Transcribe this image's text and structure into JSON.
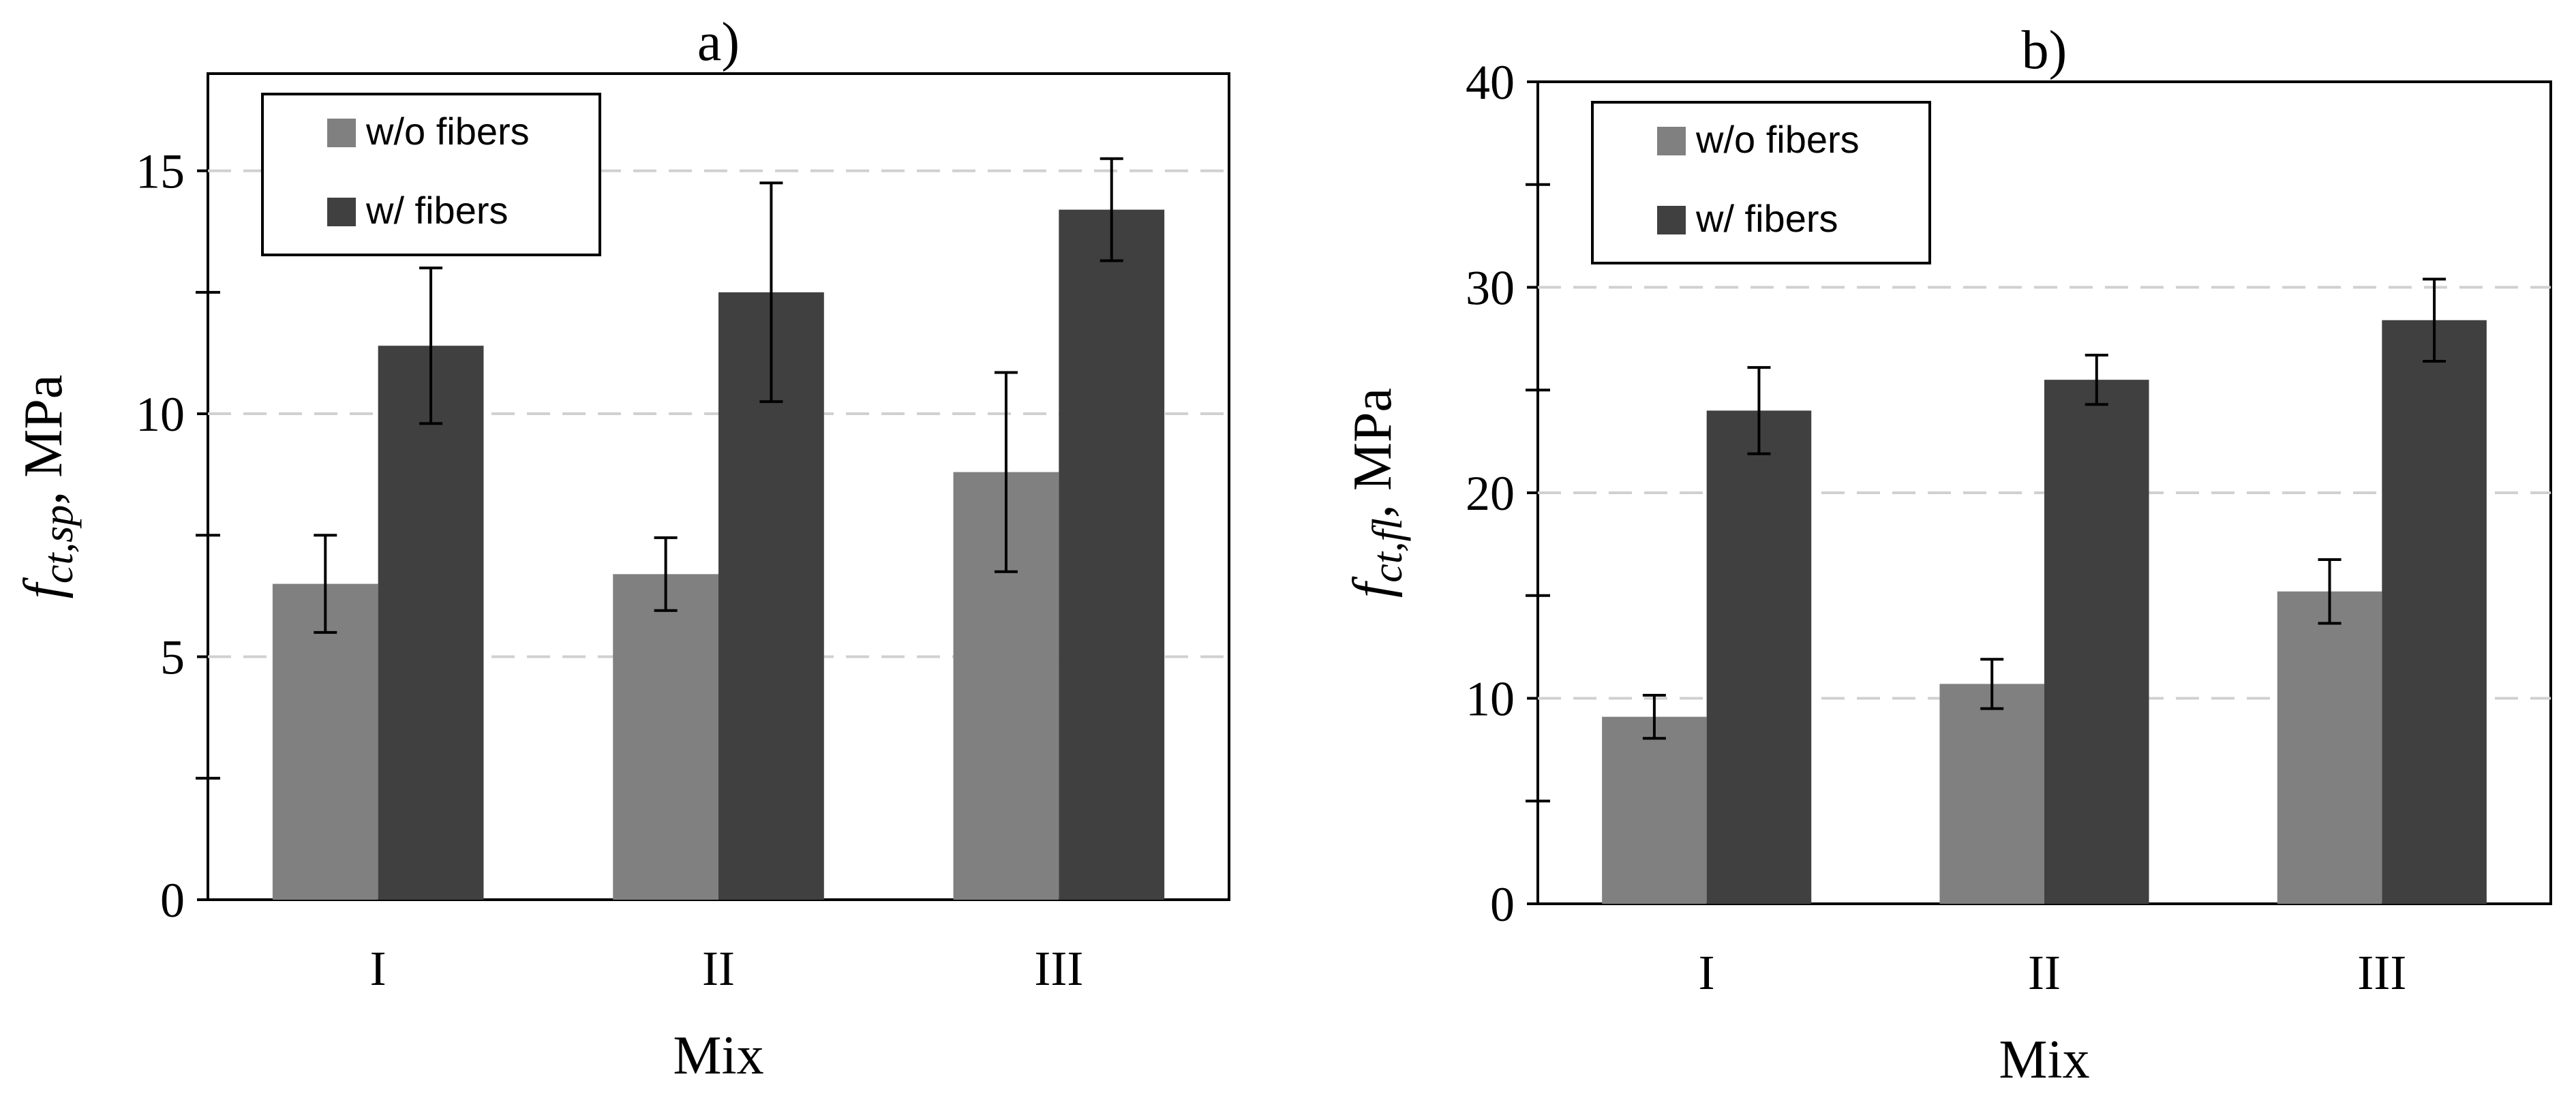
{
  "chart_data": [
    {
      "type": "bar",
      "title": "a)",
      "xlabel": "Mix",
      "ylabel": {
        "symbol": "f",
        "subscript": "ct,sp",
        "unit": ", MPa"
      },
      "categories": [
        "I",
        "II",
        "III"
      ],
      "ylim": [
        0,
        17
      ],
      "yticks": [
        0,
        5,
        10,
        15
      ],
      "grid": "horizontal dashed",
      "legend_position": "top-left",
      "series": [
        {
          "name": "w/o fibers",
          "color": "#808080",
          "values": [
            6.5,
            6.7,
            8.8
          ],
          "errors": [
            1.0,
            0.75,
            2.05
          ]
        },
        {
          "name": "w/ fibers",
          "color": "#404040",
          "values": [
            11.4,
            12.5,
            14.2
          ],
          "errors": [
            1.6,
            2.25,
            1.05
          ]
        }
      ]
    },
    {
      "type": "bar",
      "title": "b)",
      "xlabel": "Mix",
      "ylabel": {
        "symbol": "f",
        "subscript": "ct,fl",
        "unit": ", MPa"
      },
      "categories": [
        "I",
        "II",
        "III"
      ],
      "ylim": [
        0,
        40
      ],
      "yticks": [
        0,
        10,
        20,
        30,
        40
      ],
      "grid": "horizontal dashed",
      "legend_position": "top-left",
      "series": [
        {
          "name": "w/o fibers",
          "color": "#808080",
          "values": [
            9.1,
            10.7,
            15.2
          ],
          "errors": [
            1.05,
            1.2,
            1.55
          ]
        },
        {
          "name": "w/ fibers",
          "color": "#404040",
          "values": [
            24.0,
            25.5,
            28.4
          ],
          "errors": [
            2.1,
            1.2,
            2.0
          ]
        }
      ]
    }
  ]
}
